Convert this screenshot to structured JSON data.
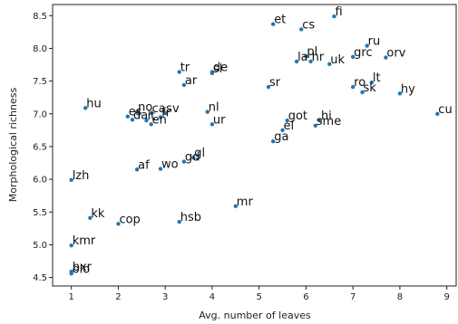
{
  "chart_data": {
    "type": "scatter",
    "title": "",
    "xlabel": "Avg. number of leaves",
    "ylabel": "Morphological richness",
    "xlim": [
      0.6,
      9.2
    ],
    "ylim": [
      4.37,
      8.67
    ],
    "xticks": [
      1,
      2,
      3,
      4,
      5,
      6,
      7,
      8,
      9
    ],
    "yticks": [
      4.5,
      5.0,
      5.5,
      6.0,
      6.5,
      7.0,
      7.5,
      8.0,
      8.5
    ],
    "ytick_labels": [
      "4.5",
      "5.0",
      "5.5",
      "6.0",
      "6.5",
      "7.0",
      "7.5",
      "8.0",
      "8.5"
    ],
    "grid": false,
    "point_color": "#1f77b4",
    "points": [
      {
        "label": "fi",
        "x": 6.6,
        "y": 8.49
      },
      {
        "label": "et",
        "x": 5.3,
        "y": 8.37
      },
      {
        "label": "cs",
        "x": 5.9,
        "y": 8.29
      },
      {
        "label": "ru",
        "x": 7.3,
        "y": 8.04
      },
      {
        "label": "pl",
        "x": 6.0,
        "y": 7.88
      },
      {
        "label": "grc",
        "x": 7.0,
        "y": 7.87
      },
      {
        "label": "orv",
        "x": 7.7,
        "y": 7.86
      },
      {
        "label": "la",
        "x": 5.8,
        "y": 7.8
      },
      {
        "label": "hr",
        "x": 6.1,
        "y": 7.8
      },
      {
        "label": "uk",
        "x": 6.5,
        "y": 7.76
      },
      {
        "label": "tr",
        "x": 3.3,
        "y": 7.64
      },
      {
        "label": "de",
        "x": 4.0,
        "y": 7.64
      },
      {
        "label": "sl",
        "x": 4.0,
        "y": 7.62
      },
      {
        "label": "lt",
        "x": 7.4,
        "y": 7.48
      },
      {
        "label": "ar",
        "x": 3.4,
        "y": 7.44
      },
      {
        "label": "sr",
        "x": 5.2,
        "y": 7.41
      },
      {
        "label": "ro",
        "x": 7.0,
        "y": 7.41
      },
      {
        "label": "sk",
        "x": 7.2,
        "y": 7.33
      },
      {
        "label": "hy",
        "x": 8.0,
        "y": 7.31
      },
      {
        "label": "hu",
        "x": 1.3,
        "y": 7.09
      },
      {
        "label": "no",
        "x": 2.4,
        "y": 7.03
      },
      {
        "label": "ca",
        "x": 2.7,
        "y": 7.01
      },
      {
        "label": "sv",
        "x": 3.0,
        "y": 7.01
      },
      {
        "label": "nl",
        "x": 3.9,
        "y": 7.03
      },
      {
        "label": "cu",
        "x": 8.8,
        "y": 7.0
      },
      {
        "label": "es",
        "x": 2.2,
        "y": 6.96
      },
      {
        "label": "fr",
        "x": 2.9,
        "y": 6.95
      },
      {
        "label": "da",
        "x": 2.3,
        "y": 6.91
      },
      {
        "label": "it",
        "x": 2.6,
        "y": 6.9
      },
      {
        "label": "got",
        "x": 5.6,
        "y": 6.9
      },
      {
        "label": "hi",
        "x": 6.3,
        "y": 6.9
      },
      {
        "label": "en",
        "x": 2.7,
        "y": 6.84
      },
      {
        "label": "ur",
        "x": 4.0,
        "y": 6.84
      },
      {
        "label": "sme",
        "x": 6.2,
        "y": 6.82
      },
      {
        "label": "el",
        "x": 5.5,
        "y": 6.75
      },
      {
        "label": "ga",
        "x": 5.3,
        "y": 6.58
      },
      {
        "label": "gl",
        "x": 3.6,
        "y": 6.33
      },
      {
        "label": "gd",
        "x": 3.4,
        "y": 6.27
      },
      {
        "label": "wo",
        "x": 2.9,
        "y": 6.16
      },
      {
        "label": "af",
        "x": 2.4,
        "y": 6.15
      },
      {
        "label": "lzh",
        "x": 1.0,
        "y": 5.99
      },
      {
        "label": "mr",
        "x": 4.5,
        "y": 5.59
      },
      {
        "label": "kk",
        "x": 1.4,
        "y": 5.41
      },
      {
        "label": "hsb",
        "x": 3.3,
        "y": 5.35
      },
      {
        "label": "cop",
        "x": 2.0,
        "y": 5.32
      },
      {
        "label": "kmr",
        "x": 1.0,
        "y": 4.99
      },
      {
        "label": "bxr",
        "x": 1.0,
        "y": 4.59
      },
      {
        "label": "olo",
        "x": 1.0,
        "y": 4.56
      }
    ]
  }
}
